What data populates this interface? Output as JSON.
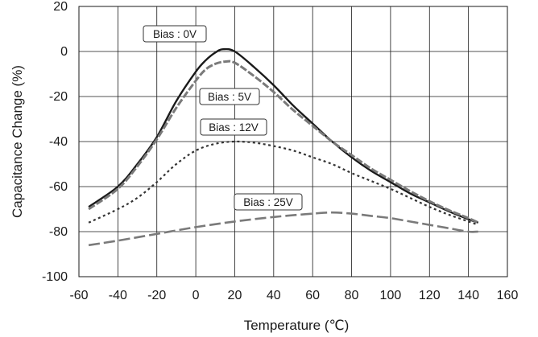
{
  "chart_data": {
    "type": "line",
    "xlabel": "Temperature (℃)",
    "ylabel": "Capacitance Change (%)",
    "xlim": [
      -60,
      160
    ],
    "ylim": [
      -100,
      20
    ],
    "xticks": [
      -60,
      -40,
      -20,
      0,
      20,
      40,
      60,
      80,
      100,
      120,
      140,
      160
    ],
    "yticks": [
      -100,
      -80,
      -60,
      -40,
      -20,
      0,
      20
    ],
    "grid": true,
    "annotations": [
      {
        "text": "Bias : 0V",
        "series": "0V"
      },
      {
        "text": "Bias : 5V",
        "series": "5V"
      },
      {
        "text": "Bias : 12V",
        "series": "12V"
      },
      {
        "text": "Bias : 25V",
        "series": "25V"
      }
    ],
    "series": [
      {
        "name": "Bias : 0V",
        "color": "#1a1a1a",
        "style": "solid",
        "points": [
          [
            -55,
            -69
          ],
          [
            -40,
            -60
          ],
          [
            -30,
            -50
          ],
          [
            -20,
            -38
          ],
          [
            -10,
            -22
          ],
          [
            0,
            -9
          ],
          [
            5,
            -4
          ],
          [
            10,
            -0.5
          ],
          [
            14,
            1
          ],
          [
            20,
            0
          ],
          [
            30,
            -7
          ],
          [
            40,
            -15
          ],
          [
            50,
            -24
          ],
          [
            60,
            -32
          ],
          [
            70,
            -40
          ],
          [
            80,
            -47
          ],
          [
            90,
            -53
          ],
          [
            100,
            -58
          ],
          [
            110,
            -63
          ],
          [
            120,
            -67
          ],
          [
            130,
            -71
          ],
          [
            140,
            -74.5
          ],
          [
            145,
            -76
          ]
        ]
      },
      {
        "name": "Bias : 5V",
        "color": "#7a7a7a",
        "style": "dashed",
        "points": [
          [
            -55,
            -70
          ],
          [
            -40,
            -61
          ],
          [
            -30,
            -51
          ],
          [
            -20,
            -39
          ],
          [
            -10,
            -25
          ],
          [
            0,
            -13
          ],
          [
            5,
            -8
          ],
          [
            10,
            -5.5
          ],
          [
            15,
            -4.5
          ],
          [
            20,
            -5
          ],
          [
            30,
            -11
          ],
          [
            40,
            -18
          ],
          [
            50,
            -26
          ],
          [
            60,
            -33
          ],
          [
            70,
            -40
          ],
          [
            80,
            -46
          ],
          [
            90,
            -52
          ],
          [
            100,
            -57
          ],
          [
            110,
            -62
          ],
          [
            120,
            -66.5
          ],
          [
            130,
            -70.5
          ],
          [
            140,
            -74
          ],
          [
            145,
            -76
          ]
        ]
      },
      {
        "name": "Bias : 12V",
        "color": "#333333",
        "style": "dotted",
        "points": [
          [
            -55,
            -76
          ],
          [
            -40,
            -70
          ],
          [
            -30,
            -65
          ],
          [
            -20,
            -58
          ],
          [
            -10,
            -50
          ],
          [
            0,
            -44
          ],
          [
            10,
            -41
          ],
          [
            20,
            -40
          ],
          [
            30,
            -40.5
          ],
          [
            40,
            -42
          ],
          [
            50,
            -44
          ],
          [
            60,
            -47
          ],
          [
            70,
            -50
          ],
          [
            80,
            -54
          ],
          [
            90,
            -57.5
          ],
          [
            100,
            -61
          ],
          [
            110,
            -65
          ],
          [
            120,
            -69
          ],
          [
            130,
            -72.5
          ],
          [
            140,
            -75.5
          ],
          [
            145,
            -77
          ]
        ]
      },
      {
        "name": "Bias : 25V",
        "color": "#7a7a7a",
        "style": "longdash",
        "points": [
          [
            -55,
            -86
          ],
          [
            -40,
            -84
          ],
          [
            -20,
            -81
          ],
          [
            0,
            -78
          ],
          [
            20,
            -75.5
          ],
          [
            40,
            -73.5
          ],
          [
            60,
            -72
          ],
          [
            70,
            -71.5
          ],
          [
            80,
            -72
          ],
          [
            90,
            -73
          ],
          [
            100,
            -74
          ],
          [
            110,
            -75.5
          ],
          [
            120,
            -77
          ],
          [
            130,
            -78.5
          ],
          [
            140,
            -80
          ],
          [
            145,
            -80
          ]
        ]
      }
    ]
  }
}
